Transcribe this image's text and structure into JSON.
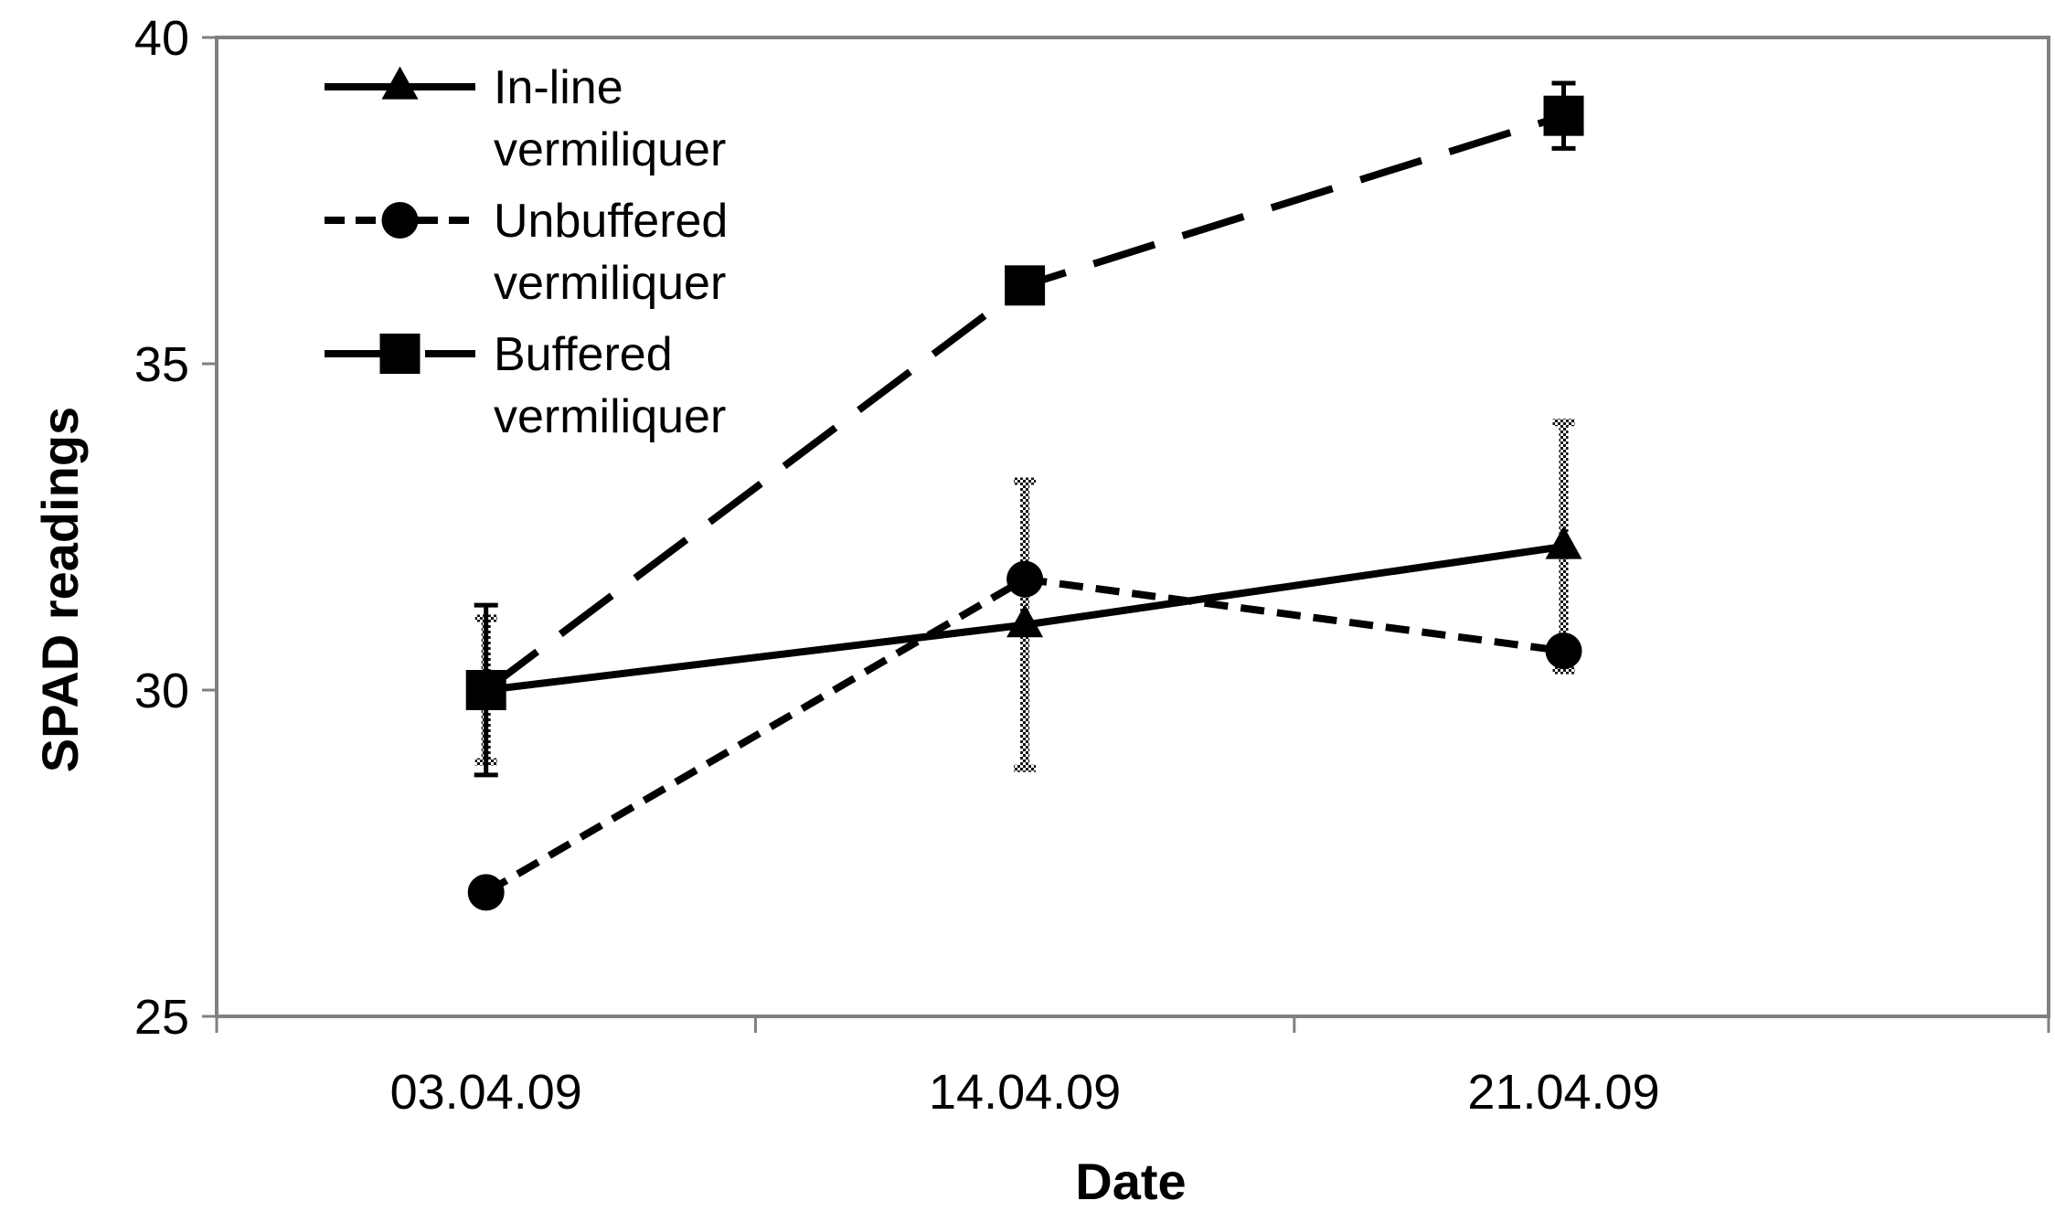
{
  "chart_data": {
    "type": "line",
    "title": "",
    "xlabel": "Date",
    "ylabel": "SPAD readings",
    "categories": [
      "03.04.09",
      "14.04.09",
      "21.04.09"
    ],
    "ylim": [
      25,
      40
    ],
    "yticks": [
      25,
      30,
      35,
      40
    ],
    "grid": false,
    "legend_position": "top-left",
    "series": [
      {
        "name": "In-line vermiliquer",
        "name_lines": [
          "In-line",
          "vermiliquer"
        ],
        "marker": "triangle",
        "line_style": "solid",
        "values": [
          30.0,
          31.0,
          32.2
        ],
        "errors": [
          1.1,
          2.2,
          1.9
        ],
        "error_style": "hatched"
      },
      {
        "name": "Unbuffered vermiliquer",
        "name_lines": [
          "Unbuffered",
          "vermiliquer"
        ],
        "marker": "circle",
        "line_style": "dashed",
        "values": [
          26.9,
          31.7,
          30.6
        ],
        "errors": [
          0.0,
          0.0,
          0.0
        ],
        "error_style": "none"
      },
      {
        "name": "Buffered vermiliquer",
        "name_lines": [
          "Buffered",
          "vermiliquer"
        ],
        "marker": "square",
        "line_style": "long-dash",
        "values": [
          30.0,
          36.2,
          38.8
        ],
        "errors": [
          1.3,
          0.0,
          0.5
        ],
        "error_style": "solid"
      }
    ],
    "colors": {
      "line": "#000000",
      "frame": "#808080",
      "hatch": "#b0b0b0"
    }
  }
}
